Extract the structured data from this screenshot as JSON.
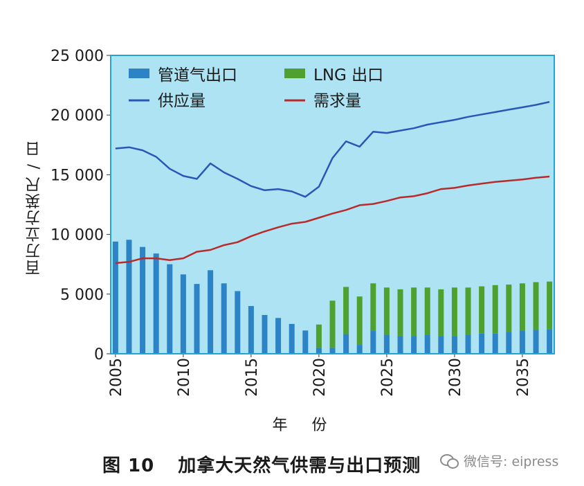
{
  "caption": {
    "figure_no": "图 10",
    "title": "加拿大天然气供需与出口预测"
  },
  "watermark": {
    "text": "微信号: eipress",
    "icon": "wechat-icon"
  },
  "colors": {
    "plot_bg": "#ade3f3",
    "plot_border": "#1aa6d8",
    "pipeline_bar": "#2c83c5",
    "lng_bar": "#4ea12e",
    "supply_line": "#2a56b8",
    "demand_line": "#b92a2a"
  },
  "chart_data": {
    "type": "bar",
    "title": "",
    "xlabel": "年 份",
    "ylabel": "百万立方英尺 / 日",
    "ylim": [
      0,
      25000
    ],
    "xlim": [
      2005,
      2037
    ],
    "yticks": [
      "0",
      "5 000",
      "10 000",
      "15 000",
      "20 000",
      "25 000"
    ],
    "ytick_values": [
      0,
      5000,
      10000,
      15000,
      20000,
      25000
    ],
    "xticks": [
      "2005",
      "2010",
      "2015",
      "2020",
      "2025",
      "2030",
      "2035"
    ],
    "xtick_values": [
      2005,
      2010,
      2015,
      2020,
      2025,
      2030,
      2035
    ],
    "grid": false,
    "legend_position": "top",
    "x": [
      2005,
      2006,
      2007,
      2008,
      2009,
      2010,
      2011,
      2012,
      2013,
      2014,
      2015,
      2016,
      2017,
      2018,
      2019,
      2020,
      2021,
      2022,
      2023,
      2024,
      2025,
      2026,
      2027,
      2028,
      2029,
      2030,
      2031,
      2032,
      2033,
      2034,
      2035,
      2036,
      2037
    ],
    "series": [
      {
        "name": "管道气出口",
        "kind": "bar",
        "stack": "exports",
        "values": [
          9400,
          9550,
          8950,
          8400,
          7500,
          6650,
          5850,
          7000,
          5900,
          5250,
          4000,
          3250,
          3000,
          2500,
          1950,
          500,
          500,
          1650,
          750,
          1950,
          1600,
          1450,
          1500,
          1600,
          1450,
          1500,
          1600,
          1700,
          1700,
          1850,
          1950,
          2000,
          2050
        ]
      },
      {
        "name": "LNG 出口",
        "kind": "bar",
        "stack": "exports",
        "values": [
          0,
          0,
          0,
          0,
          0,
          0,
          0,
          0,
          0,
          0,
          0,
          0,
          0,
          0,
          0,
          1950,
          3950,
          3950,
          4050,
          3950,
          3950,
          3950,
          4050,
          3950,
          3950,
          4050,
          3950,
          3950,
          4050,
          3950,
          3950,
          4000,
          4000
        ]
      },
      {
        "name": "供应量",
        "kind": "line",
        "values": [
          17200,
          17300,
          17050,
          16500,
          15500,
          14900,
          14650,
          15950,
          15200,
          14650,
          14050,
          13700,
          13800,
          13600,
          13150,
          14000,
          16400,
          17800,
          17350,
          18600,
          18500,
          18700,
          18900,
          19200,
          19400,
          19600,
          19850,
          20050,
          20250,
          20450,
          20650,
          20850,
          21100
        ]
      },
      {
        "name": "需求量",
        "kind": "line",
        "values": [
          7600,
          7700,
          8000,
          8000,
          7850,
          8000,
          8550,
          8700,
          9100,
          9350,
          9850,
          10250,
          10600,
          10900,
          11050,
          11400,
          11750,
          12050,
          12450,
          12550,
          12800,
          13100,
          13200,
          13450,
          13800,
          13900,
          14100,
          14250,
          14400,
          14500,
          14600,
          14750,
          14850
        ]
      }
    ]
  }
}
